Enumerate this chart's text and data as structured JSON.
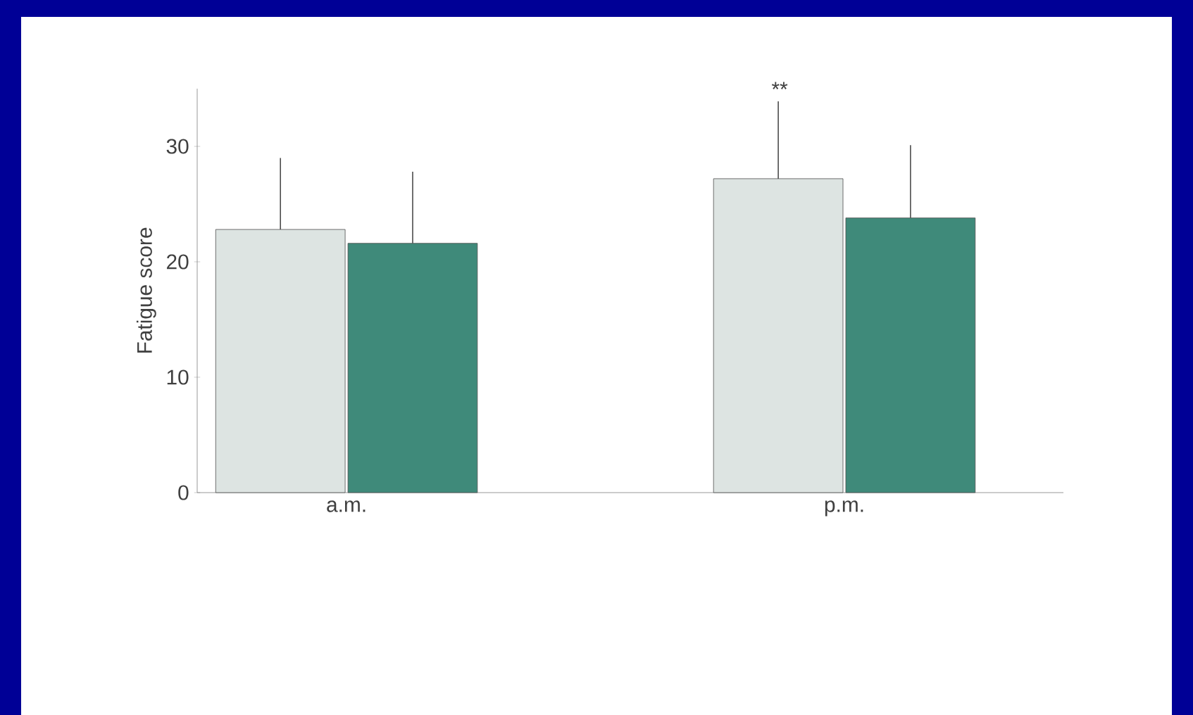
{
  "chart_data": {
    "type": "bar",
    "ylabel": "Fatigue score",
    "categories": [
      "a.m.",
      "p.m."
    ],
    "series": [
      {
        "color": "#dde4e2",
        "values": [
          22.8,
          27.2
        ],
        "errors": [
          [
            22.8,
            29.0
          ],
          [
            27.2,
            33.9
          ]
        ]
      },
      {
        "color": "#3f8a7a",
        "values": [
          21.6,
          23.8
        ],
        "errors": [
          [
            21.6,
            27.8
          ],
          [
            23.8,
            30.1
          ]
        ]
      }
    ],
    "ylim": [
      0,
      35
    ],
    "yticks": [
      0,
      10,
      20,
      30
    ],
    "annotations": [
      "**"
    ]
  }
}
